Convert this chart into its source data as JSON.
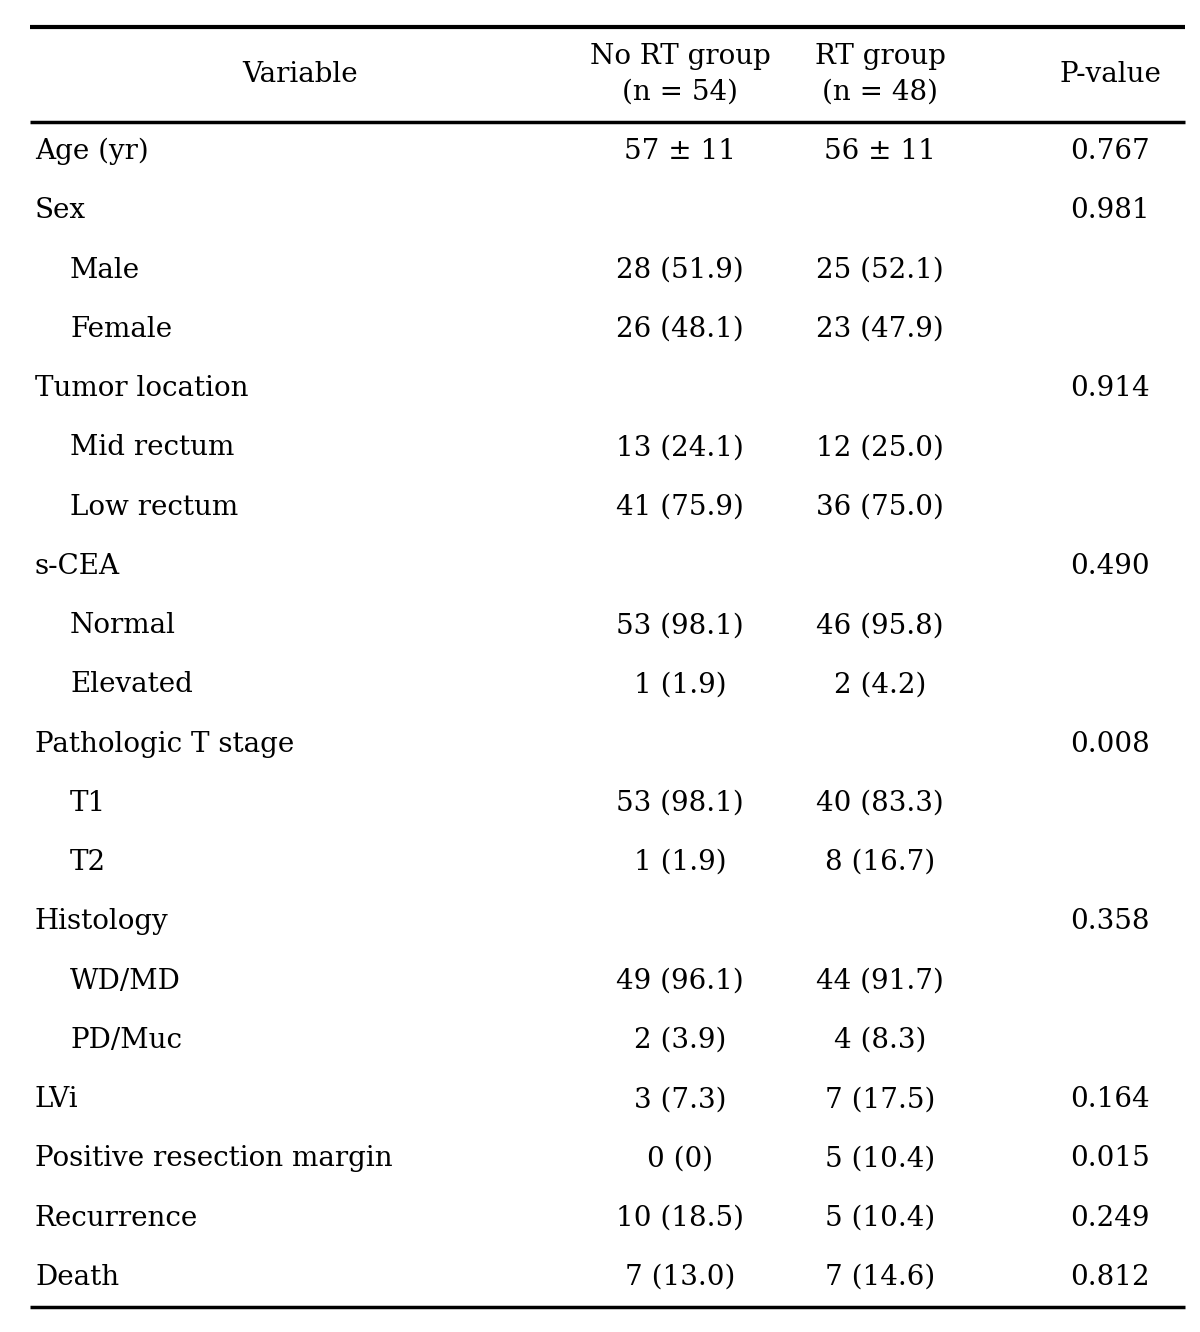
{
  "header_col1": "Variable",
  "header_col2": "No RT group\n(n = 54)",
  "header_col3": "RT group\n(n = 48)",
  "header_col4": "P-value",
  "rows": [
    {
      "label": "Age (yr)",
      "indent": false,
      "col2": "57 ± 11",
      "col3": "56 ± 11",
      "col4": "0.767"
    },
    {
      "label": "Sex",
      "indent": false,
      "col2": "",
      "col3": "",
      "col4": "0.981"
    },
    {
      "label": "Male",
      "indent": true,
      "col2": "28 (51.9)",
      "col3": "25 (52.1)",
      "col4": ""
    },
    {
      "label": "Female",
      "indent": true,
      "col2": "26 (48.1)",
      "col3": "23 (47.9)",
      "col4": ""
    },
    {
      "label": "Tumor location",
      "indent": false,
      "col2": "",
      "col3": "",
      "col4": "0.914"
    },
    {
      "label": "Mid rectum",
      "indent": true,
      "col2": "13 (24.1)",
      "col3": "12 (25.0)",
      "col4": ""
    },
    {
      "label": "Low rectum",
      "indent": true,
      "col2": "41 (75.9)",
      "col3": "36 (75.0)",
      "col4": ""
    },
    {
      "label": "s-CEA",
      "indent": false,
      "col2": "",
      "col3": "",
      "col4": "0.490"
    },
    {
      "label": "Normal",
      "indent": true,
      "col2": "53 (98.1)",
      "col3": "46 (95.8)",
      "col4": ""
    },
    {
      "label": "Elevated",
      "indent": true,
      "col2": "1 (1.9)",
      "col3": "2 (4.2)",
      "col4": ""
    },
    {
      "label": "Pathologic T stage",
      "indent": false,
      "col2": "",
      "col3": "",
      "col4": "0.008"
    },
    {
      "label": "T1",
      "indent": true,
      "col2": "53 (98.1)",
      "col3": "40 (83.3)",
      "col4": ""
    },
    {
      "label": "T2",
      "indent": true,
      "col2": "1 (1.9)",
      "col3": "8 (16.7)",
      "col4": ""
    },
    {
      "label": "Histology",
      "indent": false,
      "col2": "",
      "col3": "",
      "col4": "0.358"
    },
    {
      "label": "WD/MD",
      "indent": true,
      "col2": "49 (96.1)",
      "col3": "44 (91.7)",
      "col4": ""
    },
    {
      "label": "PD/Muc",
      "indent": true,
      "col2": "2 (3.9)",
      "col3": "4 (8.3)",
      "col4": ""
    },
    {
      "label": "LVi",
      "indent": false,
      "col2": "3 (7.3)",
      "col3": "7 (17.5)",
      "col4": "0.164"
    },
    {
      "label": "Positive resection margin",
      "indent": false,
      "col2": "0 (0)",
      "col3": "5 (10.4)",
      "col4": "0.015"
    },
    {
      "label": "Recurrence",
      "indent": false,
      "col2": "10 (18.5)",
      "col3": "5 (10.4)",
      "col4": "0.249"
    },
    {
      "label": "Death",
      "indent": false,
      "col2": "7 (13.0)",
      "col3": "7 (14.6)",
      "col4": "0.812"
    }
  ],
  "bg_color": "#ffffff",
  "text_color": "#000000",
  "font_size": 20,
  "header_font_size": 20,
  "fig_width": 12.0,
  "fig_height": 13.32
}
